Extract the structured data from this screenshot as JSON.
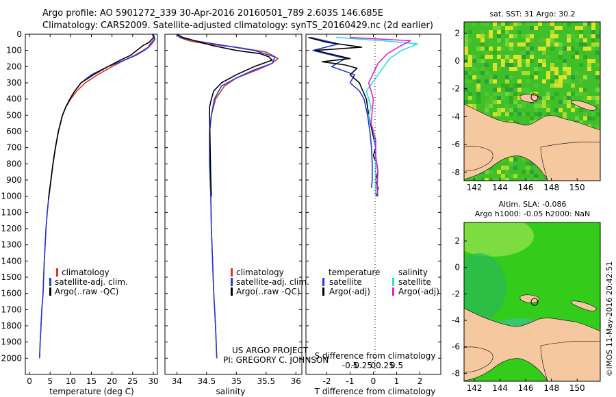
{
  "header": {
    "line1": "Argo profile: AO 5901272_339 30-Apr-2016 20160501_789 2.603S 146.685E",
    "line2": "Climatology: CARS2009. Satellite-adjusted climatology: synTS_20160429.nc (2d earlier)"
  },
  "side_stamp": "©IMOS 11-May-2016 20:42:51",
  "project": {
    "line1": "US ARGO PROJECT",
    "line2": "PI: GREGORY C. JOHNSON"
  },
  "colors": {
    "climatology": "#e03020",
    "satellite": "#1f3ae6",
    "argo": "#000000",
    "salinity_satellite": "#22e0e6",
    "salinity_argo": "#e020d0",
    "land": "#f6c8a0",
    "sst_base": "#3fbf2a",
    "sla_base": "#33cc1a"
  },
  "chart_data": [
    {
      "type": "line",
      "id": "temperature",
      "xlabel": "temperature (deg C)",
      "ylabel": "",
      "xlim": [
        -1,
        31
      ],
      "ylim": [
        2100,
        0
      ],
      "xticks": [
        0,
        5,
        10,
        15,
        20,
        25,
        30
      ],
      "yticks": [
        0,
        100,
        200,
        300,
        400,
        500,
        600,
        700,
        800,
        900,
        1000,
        1100,
        1200,
        1300,
        1400,
        1500,
        1600,
        1700,
        1800,
        1900,
        2000
      ],
      "legend": [
        "climatology",
        "satellite-adj. clim.",
        "Argo(..raw -QC)"
      ],
      "series": [
        {
          "name": "climatology",
          "x": [
            30.0,
            30.3,
            29.2,
            28.8,
            27.5,
            25.5,
            23.0,
            20.0,
            16.5,
            13.5,
            11.5,
            10.0,
            8.8,
            8.0,
            7.0,
            6.3,
            5.7,
            5.2,
            4.7,
            4.3,
            4.0,
            3.6,
            3.3,
            3.0,
            2.8,
            2.6,
            2.45
          ],
          "y": [
            0,
            30,
            60,
            80,
            100,
            130,
            160,
            200,
            250,
            300,
            350,
            400,
            450,
            500,
            600,
            700,
            800,
            900,
            1000,
            1100,
            1200,
            1400,
            1600,
            1700,
            1800,
            1900,
            2000
          ]
        },
        {
          "name": "satellite",
          "x": [
            30.0,
            30.4,
            29.6,
            28.9,
            27.8,
            25.8,
            23.0,
            19.0,
            15.0,
            12.5,
            11.0,
            9.8,
            8.8,
            8.0,
            7.0,
            6.3,
            5.7,
            5.2,
            4.7,
            4.3,
            4.0,
            3.6,
            3.3,
            3.0,
            2.8,
            2.6,
            2.45
          ],
          "y": [
            0,
            30,
            60,
            80,
            100,
            130,
            160,
            200,
            250,
            300,
            350,
            400,
            450,
            500,
            600,
            700,
            800,
            900,
            1000,
            1100,
            1200,
            1400,
            1600,
            1700,
            1800,
            1900,
            2000
          ]
        },
        {
          "name": "Argo",
          "x": [
            29.8,
            30.1,
            29.0,
            27.5,
            26.0,
            24.5,
            22.0,
            19.0,
            15.5,
            12.5,
            11.0,
            9.8,
            8.8,
            8.0,
            7.0,
            6.3,
            5.7,
            5.2,
            4.7,
            4.6
          ],
          "y": [
            0,
            20,
            50,
            70,
            100,
            130,
            160,
            200,
            250,
            300,
            350,
            400,
            450,
            500,
            600,
            700,
            800,
            900,
            1000,
            1020
          ]
        }
      ]
    },
    {
      "type": "line",
      "id": "salinity",
      "xlabel": "salinity",
      "ylabel": "",
      "xlim": [
        33.8,
        36.1
      ],
      "ylim": [
        2100,
        0
      ],
      "xticks": [
        34,
        34.5,
        35,
        35.5,
        36
      ],
      "legend": [
        "climatology",
        "satellite-adj. clim.",
        "Argo(..raw -QC)"
      ],
      "series": [
        {
          "name": "climatology",
          "x": [
            34.0,
            34.05,
            34.2,
            34.5,
            35.0,
            35.5,
            35.7,
            35.6,
            35.35,
            35.0,
            34.8,
            34.65,
            34.58,
            34.55,
            34.55,
            34.55,
            34.56,
            34.57,
            34.58,
            34.6,
            34.62,
            34.65,
            34.67
          ],
          "y": [
            0,
            20,
            40,
            60,
            80,
            110,
            150,
            180,
            220,
            270,
            320,
            400,
            500,
            600,
            700,
            800,
            900,
            1000,
            1200,
            1400,
            1600,
            1800,
            2000
          ]
        },
        {
          "name": "satellite",
          "x": [
            34.0,
            34.05,
            34.3,
            34.8,
            35.3,
            35.65,
            35.6,
            35.3,
            35.0,
            34.75,
            34.63,
            34.58,
            34.55,
            34.55,
            34.55,
            34.56,
            34.57,
            34.58,
            34.6,
            34.62,
            34.65,
            34.67
          ],
          "y": [
            0,
            20,
            40,
            70,
            100,
            140,
            180,
            220,
            270,
            320,
            400,
            500,
            600,
            700,
            800,
            900,
            1000,
            1200,
            1400,
            1600,
            1800,
            2000
          ]
        },
        {
          "name": "Argo",
          "x": [
            34.0,
            34.1,
            34.3,
            34.6,
            35.0,
            35.4,
            35.55,
            35.6,
            35.3,
            35.0,
            34.75,
            34.62,
            34.58,
            34.55,
            34.55,
            34.56,
            34.57,
            34.58
          ],
          "y": [
            0,
            20,
            40,
            70,
            100,
            120,
            140,
            160,
            200,
            250,
            300,
            350,
            400,
            450,
            500,
            700,
            900,
            1000
          ]
        }
      ]
    },
    {
      "type": "line",
      "id": "difference",
      "xlabel": "T difference from climatology",
      "xlabel2": "S difference from climatology",
      "xlim": [
        -2.9,
        2.9
      ],
      "ylim": [
        2100,
        0
      ],
      "xticks": [
        -2,
        -1,
        0,
        1,
        2
      ],
      "xticks_top": [
        -0.5,
        -0.25,
        0,
        0.25,
        0.5
      ],
      "xtick_labels_top": [
        "-0.5",
        "-0.25",
        "0",
        "0.25",
        "0.5"
      ],
      "legend_temperature_title": "temperature",
      "legend_salinity_title": "salinity",
      "legend": [
        "satellite",
        "Argo(-adj)",
        "satellite",
        "Argo(-adj)"
      ],
      "series": [
        {
          "name": "temperature satellite",
          "x": [
            -2.7,
            -1.5,
            -2.6,
            -1.2,
            -1.8,
            -0.8,
            -1.0,
            -0.6,
            -0.4,
            -0.25,
            -0.15,
            -0.08,
            -0.05,
            -0.05,
            -0.08
          ],
          "y": [
            20,
            60,
            100,
            150,
            200,
            250,
            300,
            350,
            400,
            500,
            600,
            700,
            800,
            900,
            950
          ]
        },
        {
          "name": "temperature Argo",
          "x": [
            -2.8,
            -2.0,
            -0.5,
            -2.5,
            -1.0,
            -2.2,
            -1.2,
            -0.7,
            -1.0,
            -0.6,
            -0.3,
            -0.2,
            -0.05,
            0.1,
            0.0,
            0.15,
            0.2,
            0.1,
            0.2,
            0.15
          ],
          "y": [
            20,
            50,
            80,
            100,
            150,
            170,
            190,
            210,
            250,
            300,
            400,
            500,
            600,
            700,
            750,
            800,
            850,
            900,
            950,
            1000
          ]
        },
        {
          "name": "salinity satellite",
          "x": [
            -0.8,
            0.2,
            0.95,
            0.6,
            0.35,
            0.1,
            -0.15,
            -0.05,
            -0.1,
            0.0,
            0.05,
            0.05,
            0.05,
            0.05
          ],
          "y": [
            20,
            40,
            60,
            100,
            150,
            250,
            350,
            450,
            500,
            600,
            700,
            800,
            900,
            1000
          ]
        },
        {
          "name": "salinity Argo",
          "x": [
            -0.5,
            0.8,
            0.6,
            0.3,
            0.1,
            -0.1,
            0.0,
            -0.05,
            0.05,
            0.05,
            0.1,
            0.08,
            0.1
          ],
          "y": [
            20,
            40,
            70,
            120,
            180,
            300,
            400,
            550,
            650,
            750,
            850,
            950,
            1000
          ]
        }
      ]
    },
    {
      "type": "heatmap",
      "id": "sst_map",
      "title": "sat. SST: 31  Argo: 30.2",
      "xticks": [
        142,
        144,
        146,
        148,
        150
      ],
      "yticks": [
        2,
        0,
        -2,
        -4,
        -6,
        -8
      ],
      "xlim": [
        141.2,
        151.8
      ],
      "ylim": [
        -8.6,
        2.8
      ],
      "marker": [
        146.685,
        -2.603
      ]
    },
    {
      "type": "heatmap",
      "id": "sla_map",
      "title": "Altim. SLA: -0.086",
      "subtitle": "Argo h1000: -0.05 h2000: NaN",
      "xticks": [
        142,
        144,
        146,
        148,
        150
      ],
      "yticks": [
        2,
        0,
        -2,
        -4,
        -6,
        -8
      ],
      "xlim": [
        141.2,
        151.8
      ],
      "ylim": [
        -8.6,
        3.4
      ],
      "marker": [
        146.685,
        -2.603
      ]
    }
  ]
}
